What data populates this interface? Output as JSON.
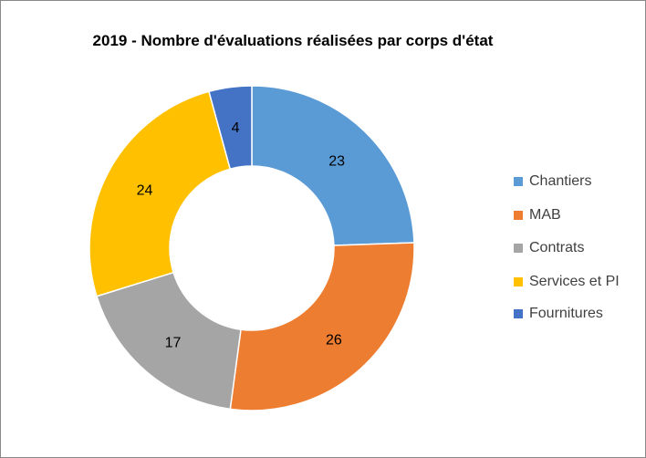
{
  "chart_data": {
    "type": "pie",
    "donut": true,
    "title": "2019 - Nombre d'évaluations réalisées par corps d'état",
    "categories": [
      "Chantiers",
      "MAB",
      "Contrats",
      "Services et PI",
      "Fournitures"
    ],
    "values": [
      23,
      26,
      17,
      24,
      4
    ],
    "colors": [
      "#5B9BD5",
      "#ED7D31",
      "#A5A5A5",
      "#FFC000",
      "#4472C4"
    ],
    "data_labels": [
      "23",
      "26",
      "17",
      "24",
      "4"
    ],
    "legend_position": "right"
  }
}
